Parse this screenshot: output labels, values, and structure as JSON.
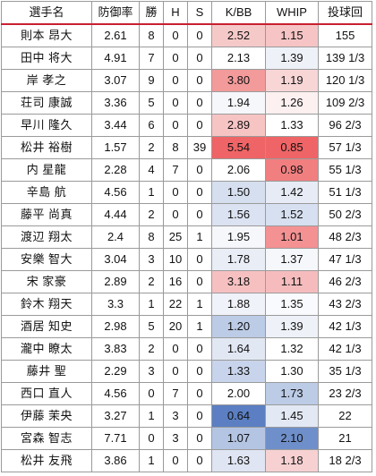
{
  "headers": {
    "name": "選手名",
    "era": "防御率",
    "wins": "勝",
    "holds": "H",
    "saves": "S",
    "kbb": "K/BB",
    "whip": "WHIP",
    "ip": "投球回"
  },
  "rows": [
    {
      "name": "則本 昂大",
      "era": "2.61",
      "wins": "8",
      "holds": "0",
      "saves": "0",
      "kbb": "2.52",
      "whip": "1.15",
      "ip": "155",
      "kbb_color": "#f6c9c9",
      "whip_color": "#f6c4c4"
    },
    {
      "name": "田中 将大",
      "era": "4.91",
      "wins": "7",
      "holds": "0",
      "saves": "0",
      "kbb": "2.13",
      "whip": "1.39",
      "ip": "139 1/3",
      "kbb_color": "#ffffff",
      "whip_color": "#eef1f8"
    },
    {
      "name": "岸 孝之",
      "era": "3.07",
      "wins": "9",
      "holds": "0",
      "saves": "0",
      "kbb": "3.80",
      "whip": "1.19",
      "ip": "120 1/3",
      "kbb_color": "#f39a9a",
      "whip_color": "#f8d6d6"
    },
    {
      "name": "荘司 康誠",
      "era": "3.36",
      "wins": "5",
      "holds": "0",
      "saves": "0",
      "kbb": "1.94",
      "whip": "1.26",
      "ip": "109 2/3",
      "kbb_color": "#f6f7fb",
      "whip_color": "#fcf0f0"
    },
    {
      "name": "早川 隆久",
      "era": "3.44",
      "wins": "6",
      "holds": "0",
      "saves": "0",
      "kbb": "2.89",
      "whip": "1.33",
      "ip": "96 2/3",
      "kbb_color": "#f7c4c4",
      "whip_color": "#ffffff"
    },
    {
      "name": "松井 裕樹",
      "era": "1.57",
      "wins": "2",
      "holds": "8",
      "saves": "39",
      "kbb": "5.54",
      "whip": "0.85",
      "ip": "57 1/3",
      "kbb_color": "#ef6466",
      "whip_color": "#ef6466"
    },
    {
      "name": "内 星龍",
      "era": "2.28",
      "wins": "4",
      "holds": "7",
      "saves": "0",
      "kbb": "2.06",
      "whip": "0.98",
      "ip": "55 1/3",
      "kbb_color": "#ffffff",
      "whip_color": "#f17f80"
    },
    {
      "name": "辛島 航",
      "era": "4.56",
      "wins": "1",
      "holds": "0",
      "saves": "0",
      "kbb": "1.50",
      "whip": "1.42",
      "ip": "51 1/3",
      "kbb_color": "#d6dfef",
      "whip_color": "#e6ebf5"
    },
    {
      "name": "藤平 尚真",
      "era": "4.44",
      "wins": "2",
      "holds": "0",
      "saves": "0",
      "kbb": "1.56",
      "whip": "1.52",
      "ip": "50 2/3",
      "kbb_color": "#dbe2f1",
      "whip_color": "#d7e0f0"
    },
    {
      "name": "渡辺 翔太",
      "era": "2.4",
      "wins": "8",
      "holds": "25",
      "saves": "1",
      "kbb": "1.95",
      "whip": "1.01",
      "ip": "48 2/3",
      "kbb_color": "#f6f7fb",
      "whip_color": "#f39193"
    },
    {
      "name": "安樂 智大",
      "era": "3.04",
      "wins": "3",
      "holds": "10",
      "saves": "0",
      "kbb": "1.78",
      "whip": "1.37",
      "ip": "47 1/3",
      "kbb_color": "#e9edf6",
      "whip_color": "#f6f7fb"
    },
    {
      "name": "宋 家豪",
      "era": "2.89",
      "wins": "2",
      "holds": "16",
      "saves": "0",
      "kbb": "3.18",
      "whip": "1.11",
      "ip": "46 2/3",
      "kbb_color": "#f6c0c1",
      "whip_color": "#f6bcbd"
    },
    {
      "name": "鈴木 翔天",
      "era": "3.3",
      "wins": "1",
      "holds": "22",
      "saves": "1",
      "kbb": "1.88",
      "whip": "1.35",
      "ip": "43 2/3",
      "kbb_color": "#f0f2f9",
      "whip_color": "#f9fafd"
    },
    {
      "name": "酒居 知史",
      "era": "2.98",
      "wins": "5",
      "holds": "20",
      "saves": "1",
      "kbb": "1.20",
      "whip": "1.39",
      "ip": "42 1/3",
      "kbb_color": "#bccbe6",
      "whip_color": "#eef1f8"
    },
    {
      "name": "瀧中 瞭太",
      "era": "3.83",
      "wins": "2",
      "holds": "0",
      "saves": "0",
      "kbb": "1.64",
      "whip": "1.32",
      "ip": "42 1/3",
      "kbb_color": "#e1e7f3",
      "whip_color": "#ffffff"
    },
    {
      "name": "藤井 聖",
      "era": "2.29",
      "wins": "3",
      "holds": "0",
      "saves": "0",
      "kbb": "1.33",
      "whip": "1.30",
      "ip": "35 1/3",
      "kbb_color": "#c8d4eb",
      "whip_color": "#ffffff"
    },
    {
      "name": "西口 直人",
      "era": "4.56",
      "wins": "0",
      "holds": "7",
      "saves": "0",
      "kbb": "2.00",
      "whip": "1.73",
      "ip": "23 2/3",
      "kbb_color": "#ffffff",
      "whip_color": "#bccbe6"
    },
    {
      "name": "伊藤 茉央",
      "era": "3.27",
      "wins": "1",
      "holds": "3",
      "saves": "0",
      "kbb": "0.64",
      "whip": "1.45",
      "ip": "22",
      "kbb_color": "#5b7fc2",
      "whip_color": "#e2e8f4"
    },
    {
      "name": "宮森 智志",
      "era": "7.71",
      "wins": "0",
      "holds": "3",
      "saves": "0",
      "kbb": "1.07",
      "whip": "2.10",
      "ip": "21",
      "kbb_color": "#b4c5e3",
      "whip_color": "#6f8fca"
    },
    {
      "name": "松井 友飛",
      "era": "3.86",
      "wins": "1",
      "holds": "0",
      "saves": "0",
      "kbb": "1.63",
      "whip": "1.18",
      "ip": "18 2/3",
      "kbb_color": "#dfe5f2",
      "whip_color": "#f7d1d2"
    }
  ]
}
